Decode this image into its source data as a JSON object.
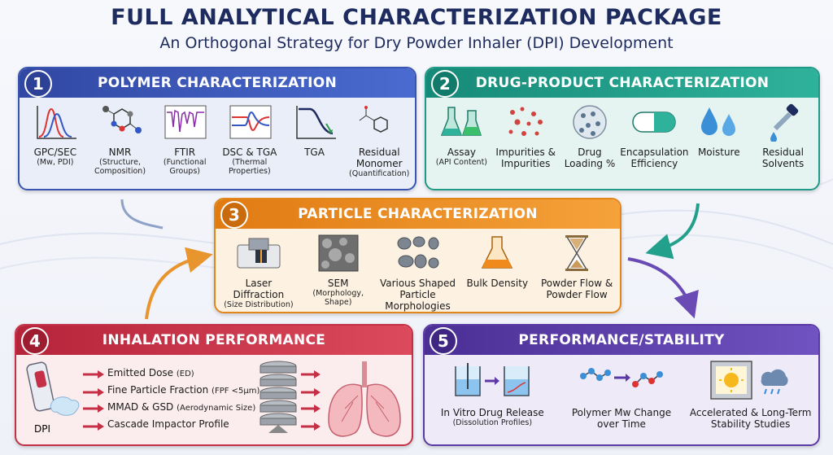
{
  "header": {
    "title": "FULL ANALYTICAL CHARACTERIZATION PACKAGE",
    "subtitle": "An Orthogonal Strategy for Dry Powder Inhaler (DPI) Development"
  },
  "panels": [
    {
      "number": "1",
      "title": "POLYMER CHARACTERIZATION",
      "items": [
        {
          "label": "GPC/SEC",
          "note": "(Mw, PDI)"
        },
        {
          "label": "NMR",
          "note": "(Structure, Composition)"
        },
        {
          "label": "FTIR",
          "note": "(Functional Groups)"
        },
        {
          "label": "DSC & TGA",
          "note": "(Thermal Properties)"
        },
        {
          "label": "TGA"
        },
        {
          "label": "Residual Monomer",
          "note": "(Quantification)"
        }
      ]
    },
    {
      "number": "2",
      "title": "DRUG-PRODUCT CHARACTERIZATION",
      "items": [
        {
          "label": "Assay",
          "note": "(API Content)"
        },
        {
          "label": "Impurities & Impurities"
        },
        {
          "label": "Drug Loading %"
        },
        {
          "label": "Encapsulation Efficiency"
        },
        {
          "label": "Moisture"
        },
        {
          "label": "Residual Solvents"
        }
      ]
    },
    {
      "number": "3",
      "title": "PARTICLE CHARACTERIZATION",
      "items": [
        {
          "label": "Laser Diffraction",
          "note": "(Size Distribution)"
        },
        {
          "label": "SEM",
          "note": "(Morphology, Shape)"
        },
        {
          "label": "Various Shaped Particle Morphologies"
        },
        {
          "label": "Bulk Density"
        },
        {
          "label": "Powder Flow & Powder Flow"
        }
      ]
    },
    {
      "number": "4",
      "title": "INHALATION PERFORMANCE",
      "device": "DPI",
      "items": [
        {
          "label": "Emitted Dose",
          "note": "(ED)"
        },
        {
          "label": "Fine Particle Fraction",
          "note": "(FPF <5µm)"
        },
        {
          "label": "MMAD & GSD",
          "note": "(Aerodynamic Size)"
        },
        {
          "label": "Cascade Impactor Profile"
        }
      ]
    },
    {
      "number": "5",
      "title": "PERFORMANCE/STABILITY",
      "items": [
        {
          "label": "In Vitro Drug Release",
          "note": "(Dissolution Profiles)"
        },
        {
          "label": "Polymer Mw Change over Time"
        },
        {
          "label": "Accelerated & Long-Term Stability Studies"
        }
      ]
    }
  ]
}
